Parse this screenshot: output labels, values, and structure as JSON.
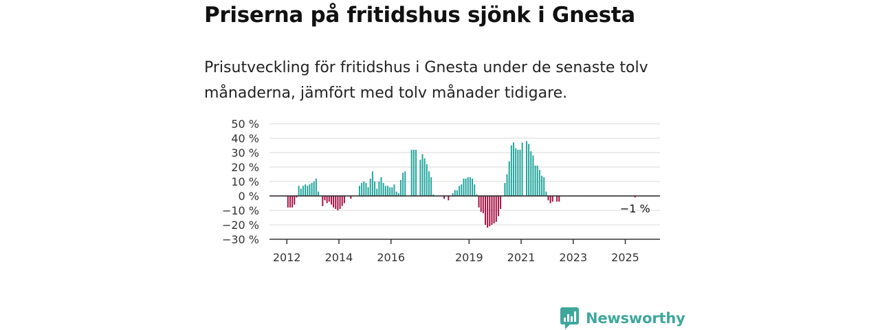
{
  "title": "Priserna på fritidshus sjönk i Gnesta",
  "subtitle": "Prisutveckling för fritidshus i Gnesta under de senaste tolv månaderna, jämfört med tolv månader tidigare.",
  "brand": {
    "name": "Newsworthy",
    "icon": "newsworthy-logo-icon",
    "color": "#3fa79c"
  },
  "colors": {
    "positive": "#1fa49c",
    "negative": "#a50d3f",
    "grid": "#d9d9d9",
    "axis": "#333333"
  },
  "chart_data": {
    "type": "bar",
    "ylabel": "",
    "xlabel": "",
    "ylim": [
      -30,
      50
    ],
    "yticks": [
      {
        "value": 50,
        "label": "50 %"
      },
      {
        "value": 40,
        "label": "40 %"
      },
      {
        "value": 30,
        "label": "30 %"
      },
      {
        "value": 20,
        "label": "20 %"
      },
      {
        "value": 10,
        "label": "10 %"
      },
      {
        "value": 0,
        "label": "0 %"
      },
      {
        "value": -10,
        "label": "−10 %"
      },
      {
        "value": -20,
        "label": "−20 %"
      },
      {
        "value": -30,
        "label": "−30 %"
      }
    ],
    "xticks": [
      {
        "label": "2012",
        "year": 2012
      },
      {
        "label": "2014",
        "year": 2014
      },
      {
        "label": "2016",
        "year": 2016
      },
      {
        "label": "2019",
        "year": 2019
      },
      {
        "label": "2021",
        "year": 2021
      },
      {
        "label": "2023",
        "year": 2023
      },
      {
        "label": "2025",
        "year": 2025
      }
    ],
    "x_range": [
      "2011-05",
      "2026-05"
    ],
    "grid": true,
    "end_label": "−1 %",
    "series": [
      {
        "values": [
          {
            "month": "2012-01",
            "value": -8
          },
          {
            "month": "2012-02",
            "value": -8
          },
          {
            "month": "2012-03",
            "value": -8
          },
          {
            "month": "2012-04",
            "value": -6
          },
          {
            "month": "2012-05",
            "value": -1
          },
          {
            "month": "2012-06",
            "value": 7
          },
          {
            "month": "2012-07",
            "value": 5
          },
          {
            "month": "2012-08",
            "value": 7
          },
          {
            "month": "2012-09",
            "value": 8
          },
          {
            "month": "2012-10",
            "value": 7
          },
          {
            "month": "2012-11",
            "value": 8
          },
          {
            "month": "2012-12",
            "value": 9
          },
          {
            "month": "2013-01",
            "value": 10
          },
          {
            "month": "2013-02",
            "value": 12
          },
          {
            "month": "2013-03",
            "value": 3
          },
          {
            "month": "2013-05",
            "value": -7
          },
          {
            "month": "2013-06",
            "value": -3
          },
          {
            "month": "2013-07",
            "value": -5
          },
          {
            "month": "2013-08",
            "value": -4
          },
          {
            "month": "2013-09",
            "value": -6
          },
          {
            "month": "2013-10",
            "value": -8
          },
          {
            "month": "2013-11",
            "value": -9
          },
          {
            "month": "2013-12",
            "value": -10
          },
          {
            "month": "2014-01",
            "value": -9
          },
          {
            "month": "2014-02",
            "value": -7
          },
          {
            "month": "2014-03",
            "value": -5
          },
          {
            "month": "2014-06",
            "value": -2
          },
          {
            "month": "2014-10",
            "value": 7
          },
          {
            "month": "2014-11",
            "value": 9
          },
          {
            "month": "2014-12",
            "value": 10
          },
          {
            "month": "2015-01",
            "value": 9
          },
          {
            "month": "2015-02",
            "value": 6
          },
          {
            "month": "2015-03",
            "value": 12
          },
          {
            "month": "2015-04",
            "value": 17
          },
          {
            "month": "2015-05",
            "value": 10
          },
          {
            "month": "2015-06",
            "value": 5
          },
          {
            "month": "2015-07",
            "value": 10
          },
          {
            "month": "2015-08",
            "value": 13
          },
          {
            "month": "2015-09",
            "value": 9
          },
          {
            "month": "2015-10",
            "value": 7
          },
          {
            "month": "2015-11",
            "value": 7
          },
          {
            "month": "2015-12",
            "value": 6
          },
          {
            "month": "2016-01",
            "value": 6
          },
          {
            "month": "2016-02",
            "value": 8
          },
          {
            "month": "2016-03",
            "value": 3
          },
          {
            "month": "2016-04",
            "value": 2
          },
          {
            "month": "2016-05",
            "value": 11
          },
          {
            "month": "2016-06",
            "value": 16
          },
          {
            "month": "2016-07",
            "value": 17
          },
          {
            "month": "2016-10",
            "value": 32
          },
          {
            "month": "2016-11",
            "value": 32
          },
          {
            "month": "2016-12",
            "value": 32
          },
          {
            "month": "2017-02",
            "value": 25
          },
          {
            "month": "2017-03",
            "value": 29
          },
          {
            "month": "2017-04",
            "value": 26
          },
          {
            "month": "2017-05",
            "value": 22
          },
          {
            "month": "2017-06",
            "value": 17
          },
          {
            "month": "2017-07",
            "value": 13
          },
          {
            "month": "2017-08",
            "value": 1
          },
          {
            "month": "2018-01",
            "value": -2
          },
          {
            "month": "2018-03",
            "value": -3
          },
          {
            "month": "2018-05",
            "value": 2
          },
          {
            "month": "2018-06",
            "value": 4
          },
          {
            "month": "2018-07",
            "value": 4
          },
          {
            "month": "2018-08",
            "value": 7
          },
          {
            "month": "2018-09",
            "value": 8
          },
          {
            "month": "2018-10",
            "value": 12
          },
          {
            "month": "2018-11",
            "value": 12
          },
          {
            "month": "2018-12",
            "value": 13
          },
          {
            "month": "2019-01",
            "value": 13
          },
          {
            "month": "2019-02",
            "value": 12
          },
          {
            "month": "2019-03",
            "value": 8
          },
          {
            "month": "2019-04",
            "value": 1
          },
          {
            "month": "2019-05",
            "value": -8
          },
          {
            "month": "2019-06",
            "value": -11
          },
          {
            "month": "2019-07",
            "value": -12
          },
          {
            "month": "2019-08",
            "value": -20
          },
          {
            "month": "2019-09",
            "value": -22
          },
          {
            "month": "2019-10",
            "value": -21
          },
          {
            "month": "2019-11",
            "value": -20
          },
          {
            "month": "2019-12",
            "value": -19
          },
          {
            "month": "2020-01",
            "value": -18
          },
          {
            "month": "2020-02",
            "value": -14
          },
          {
            "month": "2020-03",
            "value": -9
          },
          {
            "month": "2020-05",
            "value": 9
          },
          {
            "month": "2020-06",
            "value": 15
          },
          {
            "month": "2020-07",
            "value": 24
          },
          {
            "month": "2020-08",
            "value": 35
          },
          {
            "month": "2020-09",
            "value": 37
          },
          {
            "month": "2020-10",
            "value": 33
          },
          {
            "month": "2020-11",
            "value": 32
          },
          {
            "month": "2020-12",
            "value": 32
          },
          {
            "month": "2021-01",
            "value": 37
          },
          {
            "month": "2021-03",
            "value": 38
          },
          {
            "month": "2021-04",
            "value": 36
          },
          {
            "month": "2021-05",
            "value": 31
          },
          {
            "month": "2021-06",
            "value": 28
          },
          {
            "month": "2021-07",
            "value": 21
          },
          {
            "month": "2021-08",
            "value": 21
          },
          {
            "month": "2021-09",
            "value": 18
          },
          {
            "month": "2021-10",
            "value": 14
          },
          {
            "month": "2021-11",
            "value": 13
          },
          {
            "month": "2021-12",
            "value": 3
          },
          {
            "month": "2022-01",
            "value": -3
          },
          {
            "month": "2022-02",
            "value": -5
          },
          {
            "month": "2022-03",
            "value": -4
          },
          {
            "month": "2022-05",
            "value": -4
          },
          {
            "month": "2022-06",
            "value": -4
          },
          {
            "month": "2025-05",
            "value": -1
          }
        ]
      }
    ]
  }
}
